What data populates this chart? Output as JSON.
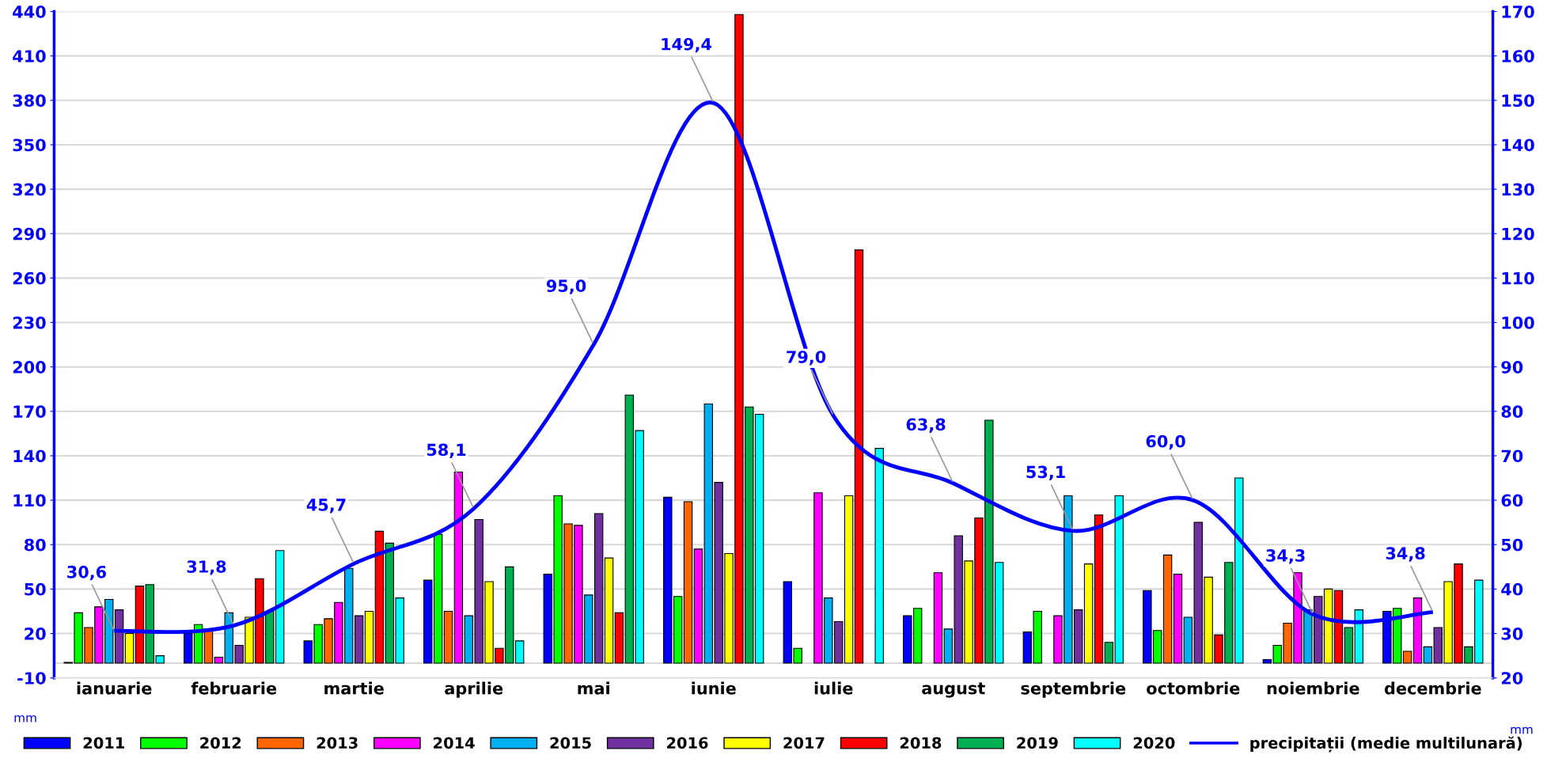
{
  "chart_data": {
    "type": "bar",
    "categories": [
      "ianuarie",
      "februarie",
      "martie",
      "aprilie",
      "mai",
      "iunie",
      "iulie",
      "august",
      "septembrie",
      "octombrie",
      "noiembrie",
      "decembrie"
    ],
    "series": [
      {
        "name": "2011",
        "color": "#0000ff",
        "values": [
          0.5,
          20,
          15,
          56,
          60,
          112,
          55,
          32,
          21,
          49,
          2.4,
          35
        ]
      },
      {
        "name": "2012",
        "color": "#00ff00",
        "values": [
          34,
          26,
          26,
          87,
          113,
          45,
          10,
          37,
          35,
          22,
          12,
          37
        ]
      },
      {
        "name": "2013",
        "color": "#ff6600",
        "values": [
          24,
          23,
          30,
          35,
          94,
          109,
          null,
          null,
          null,
          73,
          27,
          8
        ]
      },
      {
        "name": "2014",
        "color": "#ff00ff",
        "values": [
          38,
          4,
          41,
          129,
          93,
          77,
          115,
          61,
          32,
          60,
          61,
          44
        ]
      },
      {
        "name": "2015",
        "color": "#00b0f0",
        "values": [
          43,
          34,
          64,
          32,
          46,
          175,
          44,
          23,
          113,
          31,
          36,
          11
        ]
      },
      {
        "name": "2016",
        "color": "#7030a0",
        "values": [
          36,
          12,
          32,
          97,
          101,
          122,
          28,
          86,
          36,
          95,
          45,
          24
        ]
      },
      {
        "name": "2017",
        "color": "#ffff00",
        "values": [
          20,
          31,
          35,
          55,
          71,
          74,
          113,
          69,
          67,
          58,
          50,
          55
        ]
      },
      {
        "name": "2018",
        "color": "#ff0000",
        "values": [
          52,
          57,
          89,
          10,
          34,
          438,
          279,
          98,
          100,
          19,
          49,
          67
        ]
      },
      {
        "name": "2019",
        "color": "#00b050",
        "values": [
          53,
          35,
          81,
          65,
          181,
          173,
          null,
          164,
          14,
          68,
          24,
          11
        ]
      },
      {
        "name": "2020",
        "color": "#00ffff",
        "values": [
          5,
          76,
          44,
          15,
          157,
          168,
          145,
          68,
          113,
          125,
          36,
          56
        ]
      },
      {
        "name": "precipitații (medie multilunară)",
        "type": "line",
        "axis": "y2",
        "color": "#0000ff",
        "values": [
          30.6,
          31.8,
          45.7,
          58.1,
          95.0,
          149.4,
          79.0,
          63.8,
          53.1,
          60.0,
          34.3,
          34.8
        ],
        "value_labels": [
          "30,6",
          "31,8",
          "45,7",
          "58,1",
          "95,0",
          "149,4",
          "79,0",
          "63,8",
          "53,1",
          "60,0",
          "34,3",
          "34,8"
        ]
      }
    ],
    "ylabel": "mm",
    "y2label": "mm",
    "ylim": [
      -10,
      440
    ],
    "yticks": [
      -10,
      20,
      50,
      80,
      110,
      140,
      170,
      200,
      230,
      260,
      290,
      320,
      350,
      380,
      410,
      440
    ],
    "y2lim": [
      20,
      170
    ],
    "y2ticks": [
      20,
      30,
      40,
      50,
      60,
      70,
      80,
      90,
      100,
      110,
      120,
      130,
      140,
      150,
      160,
      170
    ],
    "grid": "y",
    "legend": "bottom",
    "marker": "none",
    "line_style": "solid"
  }
}
